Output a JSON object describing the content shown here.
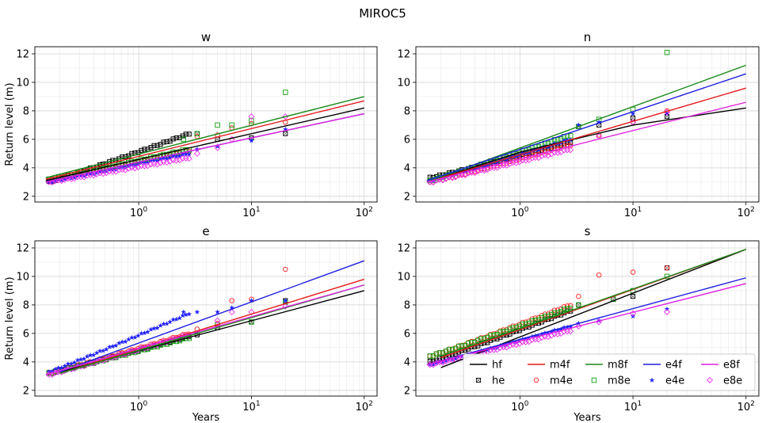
{
  "suptitle": "MIROC5",
  "colors": {
    "hf": "#000000",
    "m4f": "#e41a1c",
    "m8f": "#1a8a1a",
    "e4f": "#1f1fe0",
    "e8f": "#e020e0",
    "he": "#000000",
    "m4e": "#ff2020",
    "m8e": "#10a010",
    "e4e": "#2020ff",
    "e8e": "#ee30ee"
  },
  "chart_data": [
    {
      "type": "scatter",
      "title": "w",
      "xlabel": "",
      "ylabel": "Return level (m)",
      "xscale": "log",
      "xlim": [
        0.12,
        130
      ],
      "ylim": [
        1.6,
        12.5
      ],
      "x_ticks": [
        "10^0",
        "10^1",
        "10^2"
      ],
      "y_ticks": [
        2,
        4,
        6,
        8,
        10,
        12
      ],
      "grid": true,
      "fit_lines": [
        {
          "name": "hf",
          "x": [
            0.15,
            100
          ],
          "y": [
            3.1,
            8.2
          ]
        },
        {
          "name": "m4f",
          "x": [
            0.15,
            100
          ],
          "y": [
            3.2,
            8.7
          ]
        },
        {
          "name": "m8f",
          "x": [
            0.15,
            100
          ],
          "y": [
            3.3,
            9.0
          ]
        },
        {
          "name": "e4f",
          "x": [
            0.15,
            100
          ],
          "y": [
            3.0,
            7.8
          ]
        },
        {
          "name": "e8f",
          "x": [
            0.15,
            100
          ],
          "y": [
            3.0,
            7.8
          ]
        }
      ],
      "empirical": [
        {
          "name": "he",
          "y_range": [
            3.0,
            6.4
          ],
          "tail": [
            [
              3.3,
              6.4
            ],
            [
              5,
              6.0
            ],
            [
              10,
              6.1
            ],
            [
              20,
              6.4
            ]
          ]
        },
        {
          "name": "m4e",
          "y_range": [
            3.1,
            5.2
          ],
          "tail": [
            [
              3.3,
              6.2
            ],
            [
              5,
              6.3
            ],
            [
              6.7,
              6.8
            ],
            [
              10,
              7.1
            ],
            [
              20,
              7.2
            ]
          ]
        },
        {
          "name": "m8e",
          "y_range": [
            3.2,
            5.3
          ],
          "tail": [
            [
              2.5,
              6.0
            ],
            [
              3.3,
              6.4
            ],
            [
              5,
              7.0
            ],
            [
              6.7,
              7.0
            ],
            [
              10,
              7.3
            ],
            [
              20,
              9.3
            ]
          ]
        },
        {
          "name": "e4e",
          "y_range": [
            3.0,
            5.0
          ],
          "tail": [
            [
              3.3,
              5.3
            ],
            [
              5,
              5.5
            ],
            [
              10,
              5.9
            ],
            [
              20,
              6.7
            ]
          ]
        },
        {
          "name": "e8e",
          "y_range": [
            3.0,
            4.7
          ],
          "tail": [
            [
              3.3,
              5.0
            ],
            [
              5,
              5.4
            ],
            [
              6.7,
              6.0
            ],
            [
              10,
              7.6
            ],
            [
              20,
              7.6
            ]
          ]
        }
      ]
    },
    {
      "type": "scatter",
      "title": "n",
      "xlabel": "",
      "ylabel": "",
      "xscale": "log",
      "xlim": [
        0.12,
        130
      ],
      "ylim": [
        1.6,
        12.5
      ],
      "x_ticks": [
        "10^0",
        "10^1",
        "10^2"
      ],
      "y_ticks": [
        2,
        4,
        6,
        8,
        10,
        12
      ],
      "grid": true,
      "fit_lines": [
        {
          "name": "hf",
          "x": [
            0.2,
            1,
            10,
            100
          ],
          "y": [
            3.3,
            5.1,
            7.0,
            8.2
          ]
        },
        {
          "name": "m4f",
          "x": [
            0.15,
            100
          ],
          "y": [
            3.0,
            9.6
          ]
        },
        {
          "name": "m8f",
          "x": [
            0.15,
            100
          ],
          "y": [
            3.0,
            11.2
          ]
        },
        {
          "name": "e4f",
          "x": [
            0.15,
            100
          ],
          "y": [
            3.1,
            10.6
          ]
        },
        {
          "name": "e8f",
          "x": [
            0.15,
            100
          ],
          "y": [
            3.0,
            8.6
          ]
        }
      ],
      "empirical": [
        {
          "name": "he",
          "y_range": [
            3.3,
            5.8
          ],
          "tail": [
            [
              3.3,
              6.9
            ],
            [
              5,
              7.0
            ],
            [
              10,
              7.5
            ],
            [
              20,
              7.6
            ]
          ]
        },
        {
          "name": "m4e",
          "y_range": [
            3.0,
            5.6
          ],
          "tail": [
            [
              5,
              6.3
            ],
            [
              10,
              7.2
            ],
            [
              20,
              8.0
            ]
          ]
        },
        {
          "name": "m8e",
          "y_range": [
            3.1,
            6.3
          ],
          "tail": [
            [
              3.3,
              6.9
            ],
            [
              5,
              7.4
            ],
            [
              10,
              8.1
            ],
            [
              20,
              12.1
            ]
          ]
        },
        {
          "name": "e4e",
          "y_range": [
            3.1,
            6.0
          ],
          "tail": [
            [
              3.3,
              7.0
            ],
            [
              5,
              7.2
            ],
            [
              10,
              7.8
            ],
            [
              20,
              7.8
            ]
          ]
        },
        {
          "name": "e8e",
          "y_range": [
            3.0,
            5.3
          ],
          "tail": [
            [
              5,
              6.2
            ],
            [
              10,
              7.2
            ],
            [
              20,
              7.9
            ]
          ]
        }
      ]
    },
    {
      "type": "scatter",
      "title": "e",
      "xlabel": "Years",
      "ylabel": "Return level (m)",
      "xscale": "log",
      "xlim": [
        0.12,
        130
      ],
      "ylim": [
        1.6,
        12.5
      ],
      "x_ticks": [
        "10^0",
        "10^1",
        "10^2"
      ],
      "y_ticks": [
        2,
        4,
        6,
        8,
        10,
        12
      ],
      "grid": true,
      "fit_lines": [
        {
          "name": "hf",
          "x": [
            0.2,
            100
          ],
          "y": [
            3.3,
            9.0
          ]
        },
        {
          "name": "m4f",
          "x": [
            0.2,
            100
          ],
          "y": [
            3.2,
            9.8
          ]
        },
        {
          "name": "m8f",
          "x": [
            0.2,
            100
          ],
          "y": [
            3.2,
            9.4
          ]
        },
        {
          "name": "e4f",
          "x": [
            0.2,
            100
          ],
          "y": [
            3.3,
            11.1
          ]
        },
        {
          "name": "e8f",
          "x": [
            0.15,
            100
          ],
          "y": [
            3.1,
            9.4
          ]
        }
      ],
      "empirical": [
        {
          "name": "he",
          "y_range": [
            3.2,
            5.8
          ],
          "tail": [
            [
              3.3,
              5.9
            ],
            [
              5,
              6.4
            ],
            [
              10,
              6.8
            ],
            [
              20,
              8.3
            ]
          ]
        },
        {
          "name": "m4e",
          "y_range": [
            3.2,
            6.0
          ],
          "tail": [
            [
              3.3,
              6.3
            ],
            [
              5,
              6.7
            ],
            [
              6.7,
              8.3
            ],
            [
              10,
              8.4
            ],
            [
              20,
              10.5
            ]
          ]
        },
        {
          "name": "m8e",
          "y_range": [
            3.2,
            5.7
          ],
          "tail": [
            [
              5,
              6.6
            ],
            [
              10,
              6.8
            ],
            [
              20,
              8.2
            ]
          ]
        },
        {
          "name": "e4e",
          "y_range": [
            3.3,
            7.4
          ],
          "tail": [
            [
              2.5,
              7.5
            ],
            [
              3.3,
              7.5
            ],
            [
              5,
              7.5
            ],
            [
              6.7,
              7.8
            ],
            [
              10,
              8.3
            ],
            [
              20,
              8.3
            ]
          ]
        },
        {
          "name": "e8e",
          "y_range": [
            3.1,
            5.9
          ],
          "tail": [
            [
              5,
              6.9
            ],
            [
              6.7,
              7.5
            ],
            [
              10,
              7.5
            ],
            [
              20,
              7.9
            ]
          ]
        }
      ]
    },
    {
      "type": "scatter",
      "title": "s",
      "xlabel": "Years",
      "ylabel": "",
      "xscale": "log",
      "xlim": [
        0.12,
        130
      ],
      "ylim": [
        1.6,
        12.5
      ],
      "x_ticks": [
        "10^0",
        "10^1",
        "10^2"
      ],
      "y_ticks": [
        2,
        4,
        6,
        8,
        10,
        12
      ],
      "grid": true,
      "fit_lines": [
        {
          "name": "hf",
          "x": [
            0.2,
            100
          ],
          "y": [
            3.6,
            11.9
          ]
        },
        {
          "name": "m4f",
          "x": [
            0.2,
            100
          ],
          "y": [
            4.3,
            11.9
          ]
        },
        {
          "name": "m8f",
          "x": [
            0.2,
            100
          ],
          "y": [
            4.4,
            11.9
          ]
        },
        {
          "name": "e4f",
          "x": [
            0.15,
            100
          ],
          "y": [
            3.8,
            9.9
          ]
        },
        {
          "name": "e8f",
          "x": [
            0.15,
            100
          ],
          "y": [
            3.8,
            9.5
          ]
        }
      ],
      "empirical": [
        {
          "name": "he",
          "y_range": [
            4.0,
            7.6
          ],
          "tail": [
            [
              3.3,
              8.0
            ],
            [
              6.7,
              8.4
            ],
            [
              10,
              8.6
            ],
            [
              20,
              10.6
            ]
          ]
        },
        {
          "name": "m4e",
          "y_range": [
            4.4,
            8.0
          ],
          "tail": [
            [
              3.3,
              8.6
            ],
            [
              5,
              10.1
            ],
            [
              10,
              10.3
            ],
            [
              20,
              10.6
            ]
          ]
        },
        {
          "name": "m8e",
          "y_range": [
            4.4,
            7.8
          ],
          "tail": [
            [
              3.3,
              8.0
            ],
            [
              6.7,
              8.4
            ],
            [
              10,
              9.0
            ],
            [
              20,
              10.0
            ]
          ]
        },
        {
          "name": "e4e",
          "y_range": [
            3.8,
            6.5
          ],
          "tail": [
            [
              3.3,
              6.7
            ],
            [
              5,
              6.9
            ],
            [
              10,
              7.2
            ],
            [
              20,
              7.7
            ]
          ]
        },
        {
          "name": "e8e",
          "y_range": [
            3.8,
            6.2
          ],
          "tail": [
            [
              3.3,
              6.5
            ],
            [
              5,
              6.8
            ],
            [
              10,
              7.4
            ],
            [
              20,
              7.5
            ]
          ]
        }
      ],
      "legend": {
        "placement": "lower-right",
        "lines": [
          "hf",
          "m4f",
          "m8f",
          "e4f",
          "e8f"
        ],
        "markers": [
          "he",
          "m4e",
          "m8e",
          "e4e",
          "e8e"
        ]
      }
    }
  ]
}
